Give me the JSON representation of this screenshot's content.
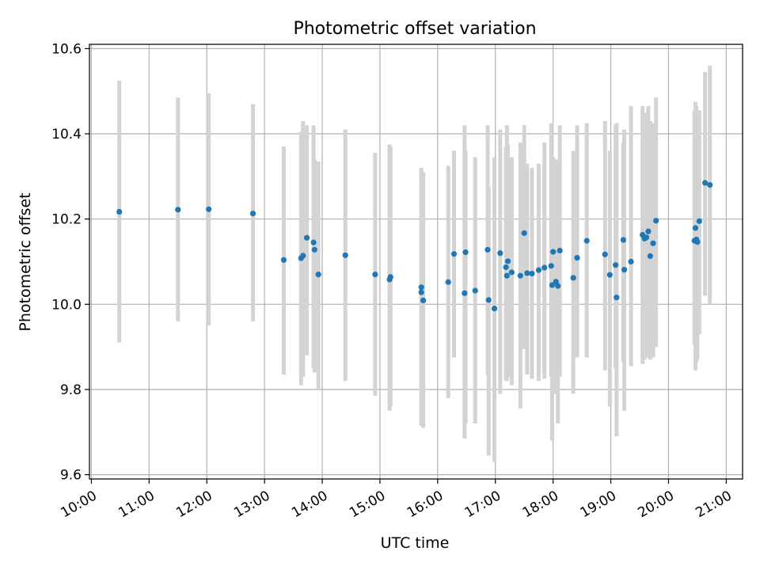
{
  "chart_data": {
    "type": "scatter",
    "title": "Photometric offset variation",
    "xlabel": "UTC time",
    "ylabel": "Photometric offset",
    "x_tick_labels": [
      "10:00",
      "11:00",
      "12:00",
      "13:00",
      "14:00",
      "15:00",
      "16:00",
      "17:00",
      "18:00",
      "19:00",
      "20:00",
      "21:00"
    ],
    "x_ticks": [
      "10:00",
      "11:00",
      "12:00",
      "13:00",
      "14:00",
      "15:00",
      "16:00",
      "17:00",
      "18:00",
      "19:00",
      "20:00",
      "21:00"
    ],
    "y_tick_labels": [
      "9.6",
      "9.8",
      "10.0",
      "10.2",
      "10.4",
      "10.6"
    ],
    "y_ticks": [
      9.6,
      9.8,
      10.0,
      10.2,
      10.4,
      10.6
    ],
    "xlim": [
      "09:58",
      "21:17"
    ],
    "ylim": [
      9.59,
      10.61
    ],
    "grid": true,
    "legend": "none",
    "colors": {
      "point": "#1f77b4",
      "errorbar": "#d3d3d3",
      "grid": "#b0b0b0",
      "axis": "#000000"
    },
    "series": [
      {
        "x": [
          "10:29",
          "11:30",
          "12:02",
          "12:48",
          "13:20",
          "13:38",
          "13:40",
          "13:44",
          "13:51",
          "13:52",
          "13:56",
          "14:24",
          "14:55",
          "15:10",
          "15:11",
          "15:43",
          "15:43",
          "15:45",
          "16:11",
          "16:17",
          "16:28",
          "16:29",
          "16:39",
          "16:52",
          "16:53",
          "16:59",
          "17:05",
          "17:11",
          "17:12",
          "17:13",
          "17:17",
          "17:26",
          "17:30",
          "17:33",
          "17:38",
          "17:45",
          "17:51",
          "17:58",
          "17:59",
          "18:00",
          "18:03",
          "18:05",
          "18:07",
          "18:21",
          "18:25",
          "18:35",
          "18:54",
          "18:59",
          "19:05",
          "19:06",
          "19:13",
          "19:14",
          "19:21",
          "19:33",
          "19:35",
          "19:37",
          "19:39",
          "19:41",
          "19:44",
          "19:47"
        ],
        "y": [
          10.217,
          10.222,
          10.223,
          10.213,
          10.104,
          10.108,
          10.114,
          10.156,
          10.145,
          10.128,
          10.07,
          10.115,
          10.07,
          10.058,
          10.064,
          10.04,
          10.028,
          10.009,
          10.052,
          10.118,
          10.026,
          10.122,
          10.032,
          10.128,
          10.01,
          9.99,
          10.12,
          10.087,
          10.067,
          10.101,
          10.075,
          10.067,
          10.167,
          10.073,
          10.072,
          10.08,
          10.086,
          10.09,
          10.045,
          10.123,
          10.053,
          10.043,
          10.126,
          10.062,
          10.109,
          10.149,
          10.117,
          10.069,
          10.092,
          10.016,
          10.151,
          10.081,
          10.1,
          10.163,
          10.154,
          10.157,
          10.171,
          10.113,
          10.143,
          10.196
        ],
        "yerr_low": [
          9.91,
          9.96,
          9.95,
          9.96,
          9.835,
          9.81,
          9.83,
          9.88,
          9.85,
          9.84,
          9.8,
          9.82,
          9.785,
          9.75,
          9.76,
          9.72,
          9.715,
          9.71,
          9.78,
          9.875,
          9.685,
          9.72,
          9.72,
          9.835,
          9.645,
          9.63,
          9.79,
          9.82,
          9.82,
          9.83,
          9.81,
          9.755,
          9.895,
          9.835,
          9.825,
          9.82,
          9.825,
          9.83,
          9.68,
          9.83,
          9.79,
          9.72,
          9.83,
          9.79,
          9.875,
          9.875,
          9.845,
          9.76,
          9.85,
          9.69,
          9.865,
          9.75,
          9.855,
          9.86,
          9.87,
          9.875,
          9.89,
          9.87,
          9.875,
          9.9
        ],
        "yerr_high": [
          10.525,
          10.485,
          10.495,
          10.47,
          10.37,
          10.405,
          10.43,
          10.42,
          10.42,
          10.34,
          10.335,
          10.41,
          10.355,
          10.375,
          10.37,
          10.32,
          10.32,
          10.31,
          10.325,
          10.36,
          10.42,
          10.36,
          10.345,
          10.42,
          10.275,
          10.345,
          10.41,
          10.37,
          10.42,
          10.375,
          10.345,
          10.38,
          10.42,
          10.33,
          10.32,
          10.33,
          10.38,
          10.425,
          10.335,
          10.345,
          10.34,
          10.325,
          10.42,
          10.36,
          10.42,
          10.425,
          10.43,
          10.36,
          10.42,
          10.425,
          10.38,
          10.41,
          10.465,
          10.465,
          10.44,
          10.45,
          10.465,
          10.43,
          10.425,
          10.485
        ]
      },
      {
        "x": [
          "20:27",
          "20:28",
          "20:29",
          "20:30",
          "20:32",
          "20:38",
          "20:43"
        ],
        "y": [
          10.149,
          10.179,
          10.152,
          10.146,
          10.195,
          10.285,
          10.28
        ],
        "yerr_low": [
          9.905,
          9.845,
          9.865,
          9.87,
          9.93,
          10.02,
          10.0
        ],
        "yerr_high": [
          10.455,
          10.475,
          10.465,
          10.415,
          10.455,
          10.545,
          10.56
        ]
      }
    ]
  }
}
